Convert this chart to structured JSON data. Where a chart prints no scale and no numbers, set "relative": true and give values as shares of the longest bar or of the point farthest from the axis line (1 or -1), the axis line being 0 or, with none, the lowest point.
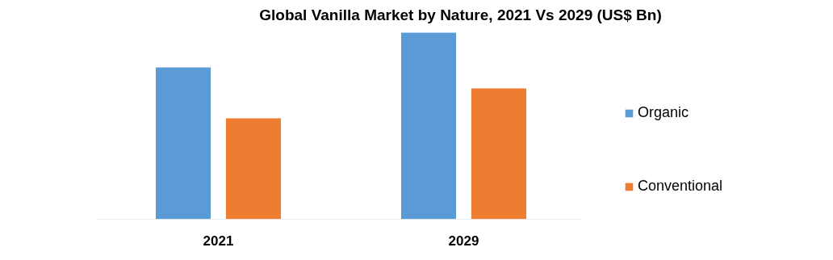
{
  "chart_data": {
    "type": "bar",
    "title": "Global Vanilla Market by Nature, 2021 Vs 2029 (US$ Bn)",
    "categories": [
      "2021",
      "2029"
    ],
    "relative": true,
    "legend": "right",
    "grid": false,
    "series": [
      {
        "name": "Organic",
        "color": "#5b9bd5",
        "values": [
          0.814,
          1
        ]
      },
      {
        "name": "Conventional",
        "color": "#ed7d31",
        "values": [
          0.541,
          0.701
        ]
      }
    ]
  }
}
